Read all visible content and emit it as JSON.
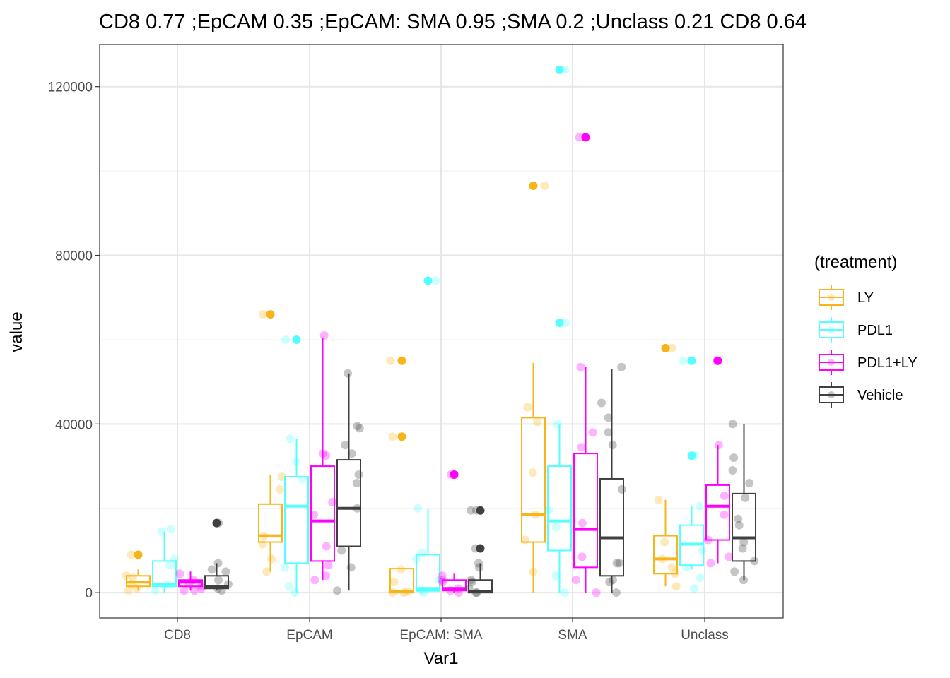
{
  "chart_data": {
    "type": "box",
    "title": "CD8 0.77 ;EpCAM 0.35 ;EpCAM: SMA 0.95 ;SMA 0.2 ;Unclass 0.21 CD8 0.64",
    "xlabel": "Var1",
    "ylabel": "value",
    "categories": [
      "CD8",
      "EpCAM",
      "EpCAM: SMA",
      "SMA",
      "Unclass"
    ],
    "ylim": [
      -6000,
      130000
    ],
    "yticks": [
      0,
      40000,
      80000,
      120000
    ],
    "ytick_labels": [
      "0",
      "40000",
      "80000",
      "120000"
    ],
    "grid": true,
    "legend": {
      "title": "(treatment)",
      "position": "right"
    },
    "series": [
      {
        "name": "LY",
        "color": "#F7B51A",
        "boxes": [
          {
            "category": "CD8",
            "whisker_low": 500,
            "q1": 1500,
            "median": 2500,
            "q3": 4000,
            "whisker_high": 5500,
            "outliers": [
              9000
            ]
          },
          {
            "category": "EpCAM",
            "whisker_low": 5000,
            "q1": 12000,
            "median": 13500,
            "q3": 21000,
            "whisker_high": 28000,
            "outliers": [
              66000
            ]
          },
          {
            "category": "EpCAM: SMA",
            "whisker_low": 0,
            "q1": 0,
            "median": 300,
            "q3": 5700,
            "whisker_high": 5700,
            "outliers": [
              55000,
              37000
            ]
          },
          {
            "category": "SMA",
            "whisker_low": 0,
            "q1": 12000,
            "median": 18500,
            "q3": 41500,
            "whisker_high": 54500,
            "outliers": [
              96500
            ]
          },
          {
            "category": "Unclass",
            "whisker_low": 1500,
            "q1": 4500,
            "median": 8000,
            "q3": 13500,
            "whisker_high": 22000,
            "outliers": [
              58000
            ]
          }
        ],
        "points": [
          {
            "category": "CD8",
            "values": [
              4000,
              2000,
              500,
              3500,
              1000,
              9000
            ]
          },
          {
            "category": "EpCAM",
            "values": [
              11500,
              27500,
              24500,
              13500,
              5000,
              8000,
              66000
            ]
          },
          {
            "category": "EpCAM: SMA",
            "values": [
              55000,
              5500,
              0,
              0,
              300,
              2500,
              37000
            ]
          },
          {
            "category": "SMA",
            "values": [
              44000,
              5000,
              12500,
              28500,
              40500,
              96500,
              18500
            ]
          },
          {
            "category": "Unclass",
            "values": [
              22000,
              12000,
              4500,
              8000,
              6000,
              1500,
              58000
            ]
          }
        ]
      },
      {
        "name": "PDL1",
        "color": "#55FFFF",
        "boxes": [
          {
            "category": "CD8",
            "whisker_low": 0,
            "q1": 1500,
            "median": 2000,
            "q3": 7500,
            "whisker_high": 14500,
            "outliers": []
          },
          {
            "category": "EpCAM",
            "whisker_low": 0,
            "q1": 7000,
            "median": 20500,
            "q3": 27500,
            "whisker_high": 36500,
            "outliers": [
              60000
            ]
          },
          {
            "category": "EpCAM: SMA",
            "whisker_low": 0,
            "q1": 400,
            "median": 1000,
            "q3": 9000,
            "whisker_high": 20000,
            "outliers": [
              74000
            ]
          },
          {
            "category": "SMA",
            "whisker_low": 0,
            "q1": 10000,
            "median": 17000,
            "q3": 30000,
            "whisker_high": 40000,
            "outliers": [
              124000,
              64000
            ]
          },
          {
            "category": "Unclass",
            "whisker_low": 5500,
            "q1": 6500,
            "median": 11500,
            "q3": 16000,
            "whisker_high": 20500,
            "outliers": [
              55000,
              32500
            ]
          }
        ],
        "points": [
          {
            "category": "CD8",
            "values": [
              8000,
              6500,
              500,
              15000,
              14500,
              2000
            ]
          },
          {
            "category": "EpCAM",
            "values": [
              27000,
              0,
              31000,
              36500,
              6000,
              1500,
              60000
            ]
          },
          {
            "category": "EpCAM: SMA",
            "values": [
              20000,
              9500,
              0,
              8000,
              3000,
              74000,
              500
            ]
          },
          {
            "category": "SMA",
            "values": [
              40000,
              15500,
              4000,
              0,
              124000,
              64000,
              19500
            ]
          },
          {
            "category": "Unclass",
            "values": [
              20500,
              10000,
              6000,
              1000,
              32500,
              55000,
              3500
            ]
          }
        ]
      },
      {
        "name": "PDL1+LY",
        "color": "#FF00FF",
        "boxes": [
          {
            "category": "CD8",
            "whisker_low": 500,
            "q1": 1500,
            "median": 2500,
            "q3": 3000,
            "whisker_high": 5000,
            "outliers": []
          },
          {
            "category": "EpCAM",
            "whisker_low": 3000,
            "q1": 7500,
            "median": 17000,
            "q3": 30000,
            "whisker_high": 60500,
            "outliers": []
          },
          {
            "category": "EpCAM: SMA",
            "whisker_low": 0,
            "q1": 500,
            "median": 1000,
            "q3": 3000,
            "whisker_high": 4500,
            "outliers": [
              28000
            ]
          },
          {
            "category": "SMA",
            "whisker_low": 0,
            "q1": 6000,
            "median": 15000,
            "q3": 33000,
            "whisker_high": 53500,
            "outliers": [
              108000
            ]
          },
          {
            "category": "Unclass",
            "whisker_low": 7000,
            "q1": 12500,
            "median": 20500,
            "q3": 25500,
            "whisker_high": 35000,
            "outliers": [
              55000
            ]
          }
        ],
        "points": [
          {
            "category": "CD8",
            "values": [
              4500,
              1000,
              500,
              1500,
              3000,
              2000,
              500
            ]
          },
          {
            "category": "EpCAM",
            "values": [
              61000,
              32500,
              21500,
              11000,
              3000,
              6500,
              4000,
              18500,
              33000
            ]
          },
          {
            "category": "EpCAM: SMA",
            "values": [
              28000,
              2500,
              500,
              3000,
              1000,
              4000,
              0
            ]
          },
          {
            "category": "SMA",
            "values": [
              53500,
              38000,
              16500,
              8500,
              3000,
              0,
              108000,
              34500
            ]
          },
          {
            "category": "Unclass",
            "values": [
              35000,
              18500,
              12500,
              7000,
              23000,
              55000,
              8500
            ]
          }
        ]
      },
      {
        "name": "Vehicle",
        "color": "#404040",
        "boxes": [
          {
            "category": "CD8",
            "whisker_low": 500,
            "q1": 1000,
            "median": 1500,
            "q3": 4000,
            "whisker_high": 7000,
            "outliers": [
              16500
            ]
          },
          {
            "category": "EpCAM",
            "whisker_low": 500,
            "q1": 11000,
            "median": 20000,
            "q3": 31500,
            "whisker_high": 52000,
            "outliers": []
          },
          {
            "category": "EpCAM: SMA",
            "whisker_low": 0,
            "q1": 0,
            "median": 300,
            "q3": 3000,
            "whisker_high": 7000,
            "outliers": [
              19500,
              10500
            ]
          },
          {
            "category": "SMA",
            "whisker_low": 0,
            "q1": 4000,
            "median": 13000,
            "q3": 27000,
            "whisker_high": 53000,
            "outliers": []
          },
          {
            "category": "Unclass",
            "whisker_low": 3000,
            "q1": 7500,
            "median": 13000,
            "q3": 23500,
            "whisker_high": 40000,
            "outliers": []
          }
        ],
        "points": [
          {
            "category": "CD8",
            "values": [
              7000,
              5000,
              3000,
              1000,
              500,
              2000,
              5500,
              16500
            ]
          },
          {
            "category": "EpCAM",
            "values": [
              52000,
              39000,
              39500,
              35000,
              33000,
              20000,
              10000,
              26000,
              28000,
              6000,
              500
            ]
          },
          {
            "category": "EpCAM: SMA",
            "values": [
              19500,
              10500,
              7000,
              6000,
              3000,
              2500,
              0,
              0,
              1000,
              19500
            ]
          },
          {
            "category": "SMA",
            "values": [
              53500,
              41500,
              45000,
              38000,
              35000,
              24500,
              7000,
              3000,
              2500,
              0,
              7000
            ]
          },
          {
            "category": "Unclass",
            "values": [
              40000,
              32000,
              29000,
              22500,
              16000,
              7500,
              5000,
              3000,
              26000,
              12000,
              10500,
              17500
            ]
          }
        ]
      }
    ]
  }
}
